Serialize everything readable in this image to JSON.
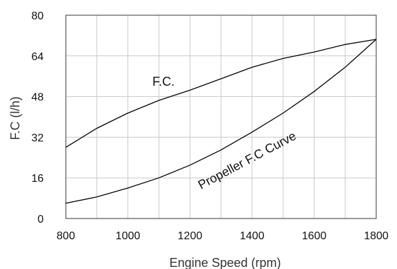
{
  "chart_data": {
    "type": "line",
    "title": "",
    "xlabel": "Engine Speed (rpm)",
    "ylabel": "F.C (l/h)",
    "xlim": [
      800,
      1800
    ],
    "ylim": [
      0,
      80
    ],
    "x_ticks": [
      800,
      1000,
      1200,
      1400,
      1600,
      1800
    ],
    "y_ticks": [
      0,
      16,
      32,
      48,
      64,
      80
    ],
    "grid": true,
    "legend": "none",
    "series": [
      {
        "x": [
          800,
          900,
          1000,
          1100,
          1200,
          1300,
          1400,
          1500,
          1600,
          1700,
          1800
        ],
        "y": [
          28,
          35.5,
          41.5,
          46.5,
          50.5,
          55,
          59.5,
          63,
          65.5,
          68.5,
          70.5
        ]
      },
      {
        "x": [
          800,
          900,
          1000,
          1100,
          1200,
          1300,
          1400,
          1500,
          1600,
          1700,
          1800
        ],
        "y": [
          6,
          8.5,
          12,
          16,
          21,
          27,
          34,
          41.5,
          50,
          59.5,
          70.5
        ]
      }
    ],
    "annotations": [
      {
        "text": "F.C."
      },
      {
        "text": "Propeller F.C Curve"
      }
    ]
  }
}
